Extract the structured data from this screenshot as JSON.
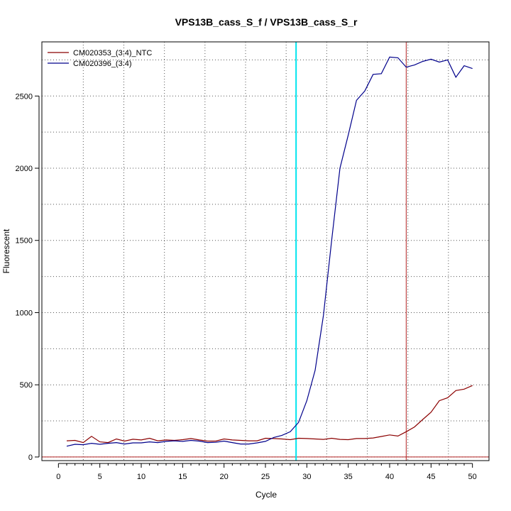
{
  "chart_data": {
    "type": "line",
    "title": "VPS13B_cass_S_f / VPS13B_cass_S_r",
    "xlabel": "Cycle",
    "ylabel": "Fluorescent",
    "xlim": [
      -2,
      52
    ],
    "ylim": [
      -25,
      2875
    ],
    "x_ticks": [
      0,
      5,
      10,
      15,
      20,
      25,
      30,
      35,
      40,
      45,
      50
    ],
    "y_ticks": [
      0,
      500,
      1000,
      1500,
      2000,
      2500
    ],
    "grid": true,
    "legend_position": "top-left",
    "threshold_vline": 28.7,
    "threshold_color": "#00e5ee",
    "cq_vline": 42,
    "cq_color": "#b22222",
    "baseline_y": 0,
    "baseline_color": "#b22222",
    "series": [
      {
        "name": "CM020353_(3:4)_NTC",
        "color": "#8b0000",
        "x": [
          1,
          2,
          3,
          4,
          5,
          6,
          7,
          8,
          9,
          10,
          11,
          12,
          13,
          14,
          15,
          16,
          17,
          18,
          19,
          20,
          21,
          22,
          23,
          24,
          25,
          26,
          27,
          28,
          29,
          30,
          31,
          32,
          33,
          34,
          35,
          36,
          37,
          38,
          39,
          40,
          41,
          42,
          43,
          44,
          45,
          46,
          47,
          48,
          49,
          50
        ],
        "values": [
          112,
          115,
          100,
          143,
          105,
          100,
          125,
          110,
          123,
          118,
          130,
          112,
          118,
          115,
          120,
          128,
          118,
          110,
          110,
          125,
          118,
          115,
          112,
          112,
          130,
          128,
          125,
          120,
          130,
          128,
          125,
          122,
          130,
          122,
          120,
          128,
          128,
          132,
          142,
          153,
          145,
          175,
          208,
          260,
          310,
          390,
          410,
          460,
          470,
          495
        ]
      },
      {
        "name": "CM020396_(3:4)",
        "color": "#00008b",
        "x": [
          1,
          2,
          3,
          4,
          5,
          6,
          7,
          8,
          9,
          10,
          11,
          12,
          13,
          14,
          15,
          16,
          17,
          18,
          19,
          20,
          21,
          22,
          23,
          24,
          25,
          26,
          27,
          28,
          29,
          30,
          31,
          32,
          33,
          34,
          35,
          36,
          37,
          38,
          39,
          40,
          41,
          42,
          43,
          44,
          45,
          46,
          47,
          48,
          49,
          50
        ],
        "values": [
          75,
          88,
          85,
          95,
          88,
          95,
          100,
          90,
          98,
          98,
          105,
          100,
          108,
          112,
          108,
          115,
          110,
          100,
          102,
          110,
          100,
          90,
          90,
          98,
          108,
          135,
          150,
          175,
          240,
          390,
          600,
          980,
          1500,
          2000,
          2230,
          2470,
          2535,
          2650,
          2655,
          2770,
          2765,
          2700,
          2715,
          2740,
          2755,
          2735,
          2750,
          2630,
          2710,
          2690
        ]
      }
    ]
  }
}
